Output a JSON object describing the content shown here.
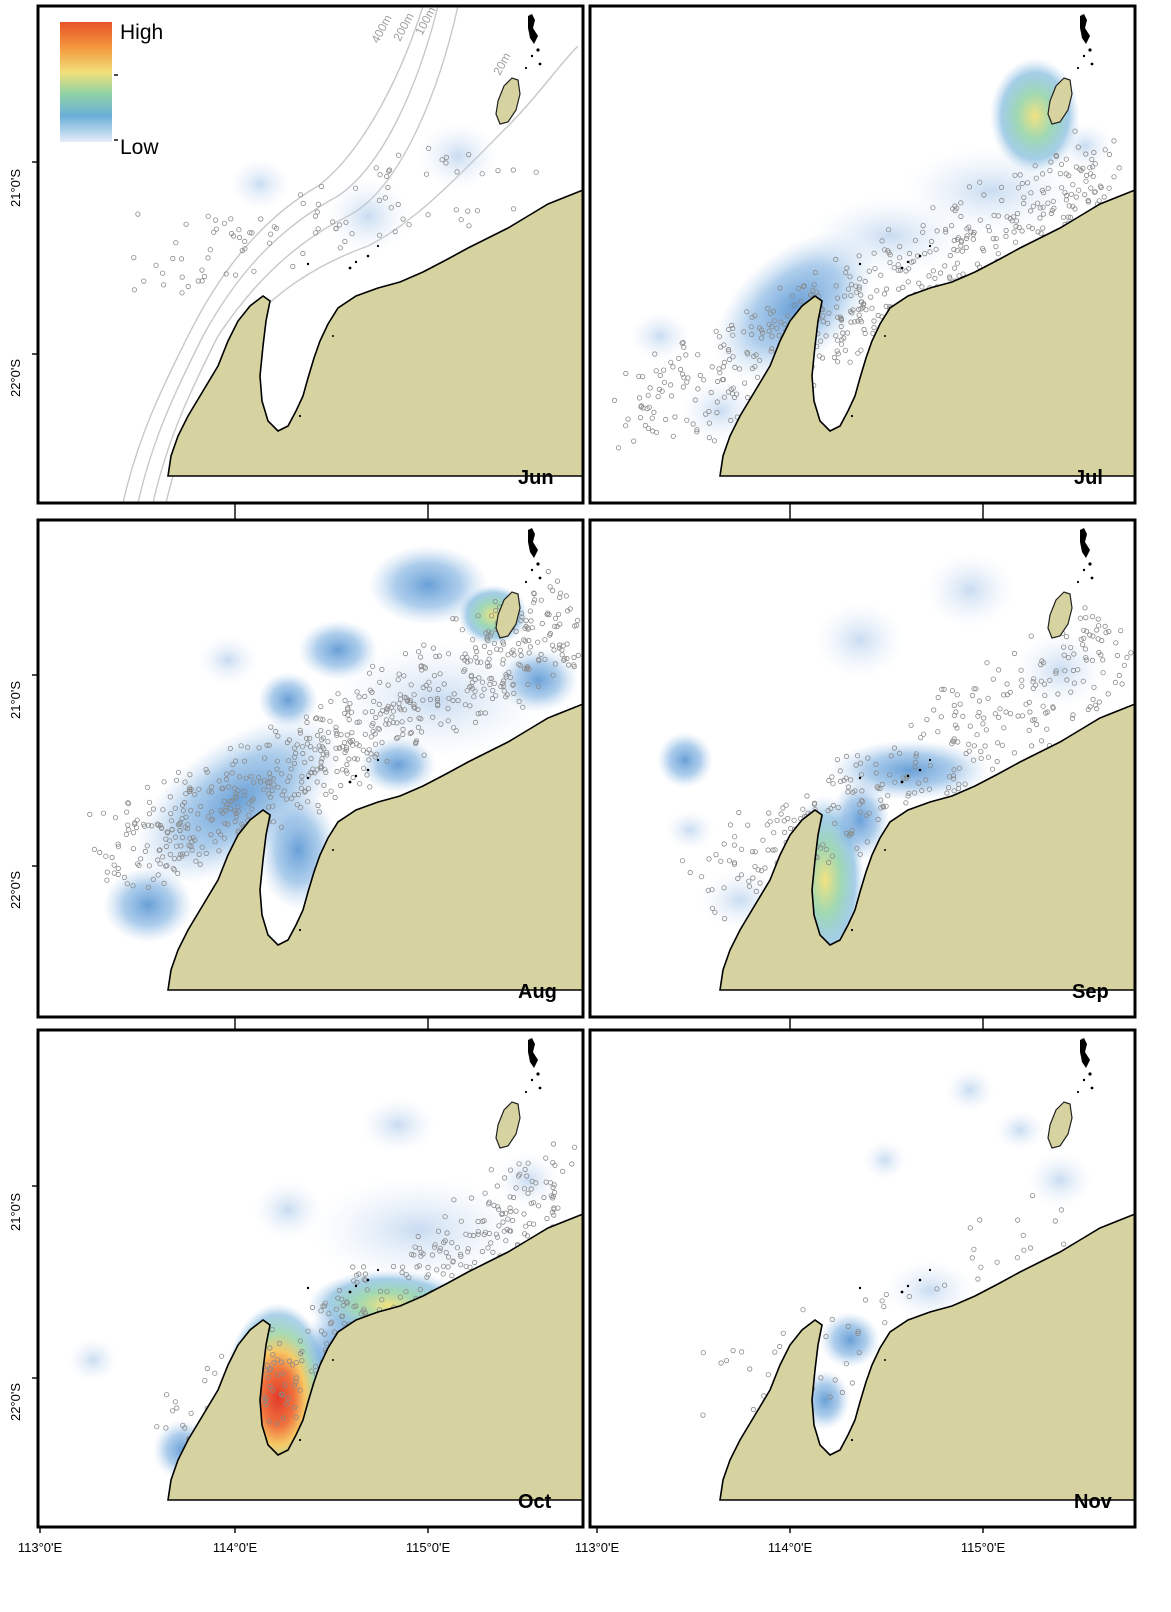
{
  "legend": {
    "high_label": "High",
    "low_label": "Low",
    "colors": [
      "#e8532a",
      "#f6b34a",
      "#f2e88a",
      "#9bd6a8",
      "#6fb6d4",
      "#8fb4e0",
      "#dbe8f7"
    ]
  },
  "contours": {
    "labels": [
      "400m",
      "200m",
      "100m",
      "20m"
    ]
  },
  "axes": {
    "lat_labels": [
      "21°0'S",
      "22°0'S"
    ],
    "lon_labels": [
      "113°0'E",
      "114°0'E",
      "115°0'E"
    ]
  },
  "panels": [
    {
      "month": "Jun",
      "intensity": "low"
    },
    {
      "month": "Jul",
      "intensity": "moderate"
    },
    {
      "month": "Aug",
      "intensity": "moderate"
    },
    {
      "month": "Sep",
      "intensity": "moderate"
    },
    {
      "month": "Oct",
      "intensity": "high"
    },
    {
      "month": "Nov",
      "intensity": "low"
    }
  ]
}
